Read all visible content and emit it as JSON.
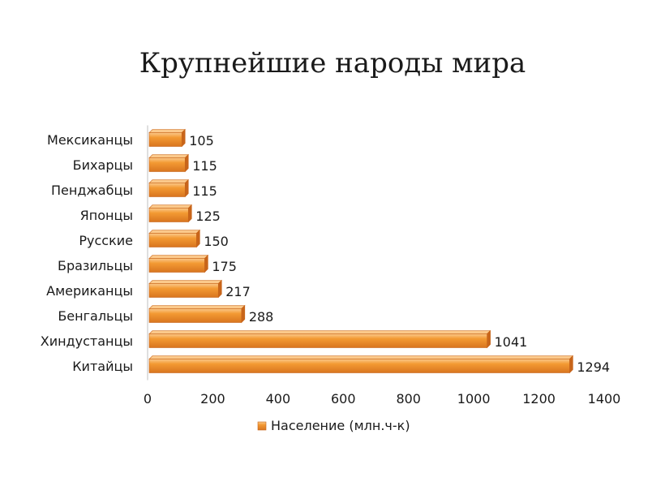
{
  "colors": {
    "bar_fill": "#f39a33",
    "bar_dark": "#c8651a",
    "bar_light": "#fbc98b",
    "text": "#1a1a1a",
    "axis": "#bfbfbf"
  },
  "chart_data": {
    "type": "bar",
    "orientation": "horizontal",
    "title": "Крупнейшие народы мира",
    "categories": [
      "Мексиканцы",
      "Бихарцы",
      "Пенджабцы",
      "Японцы",
      "Русские",
      "Бразильцы",
      "Американцы",
      "Бенгальцы",
      "Хиндустанцы",
      "Китайцы"
    ],
    "series": [
      {
        "name": "Население (млн.ч-к)",
        "values": [
          105,
          115,
          115,
          125,
          150,
          175,
          217,
          288,
          1041,
          1294
        ]
      }
    ],
    "xlim": [
      0,
      1400
    ],
    "xticks": [
      0,
      200,
      400,
      600,
      800,
      1000,
      1200,
      1400
    ],
    "grid": false,
    "legend": "bottom",
    "data_labels": true
  }
}
